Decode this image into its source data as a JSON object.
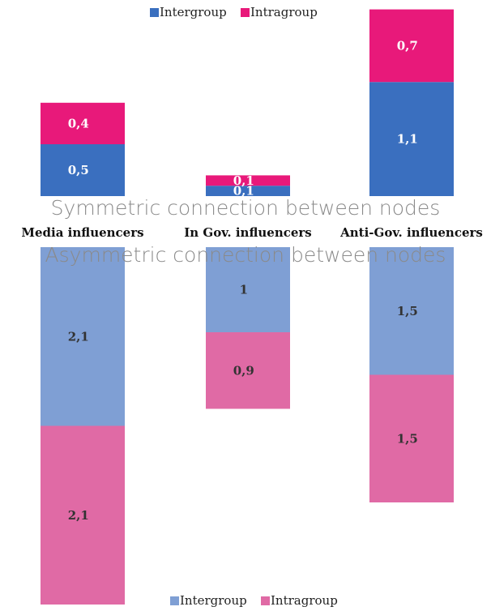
{
  "chart_data": [
    {
      "type": "bar",
      "stacked": true,
      "title": "Symmetric connection between nodes",
      "categories": [
        "Media influencers",
        "In Gov. influencers",
        "Anti-Gov. influencers"
      ],
      "series": [
        {
          "name": "Intergroup",
          "color": "#3a6fbf",
          "values": [
            0.5,
            0.1,
            1.1
          ],
          "value_labels": [
            "0,5",
            "0,1",
            "1,1"
          ]
        },
        {
          "name": "Intragroup",
          "color": "#e8197a",
          "values": [
            0.4,
            0.1,
            0.7
          ],
          "value_labels": [
            "0,4",
            "0,1",
            "0,7"
          ]
        }
      ]
    },
    {
      "type": "bar",
      "stacked": true,
      "title": "Asymmetric connection between nodes",
      "series": [
        {
          "name": "Intergroup",
          "color": "#7f9fd4",
          "values": [
            2.1,
            1,
            1.5
          ],
          "value_labels": [
            "2,1",
            "1",
            "1,5"
          ]
        },
        {
          "name": "Intragroup",
          "color": "#e06aa5",
          "values": [
            2.1,
            0.9,
            1.5
          ],
          "value_labels": [
            "2,1",
            "0,9",
            "1,5"
          ]
        }
      ]
    }
  ]
}
